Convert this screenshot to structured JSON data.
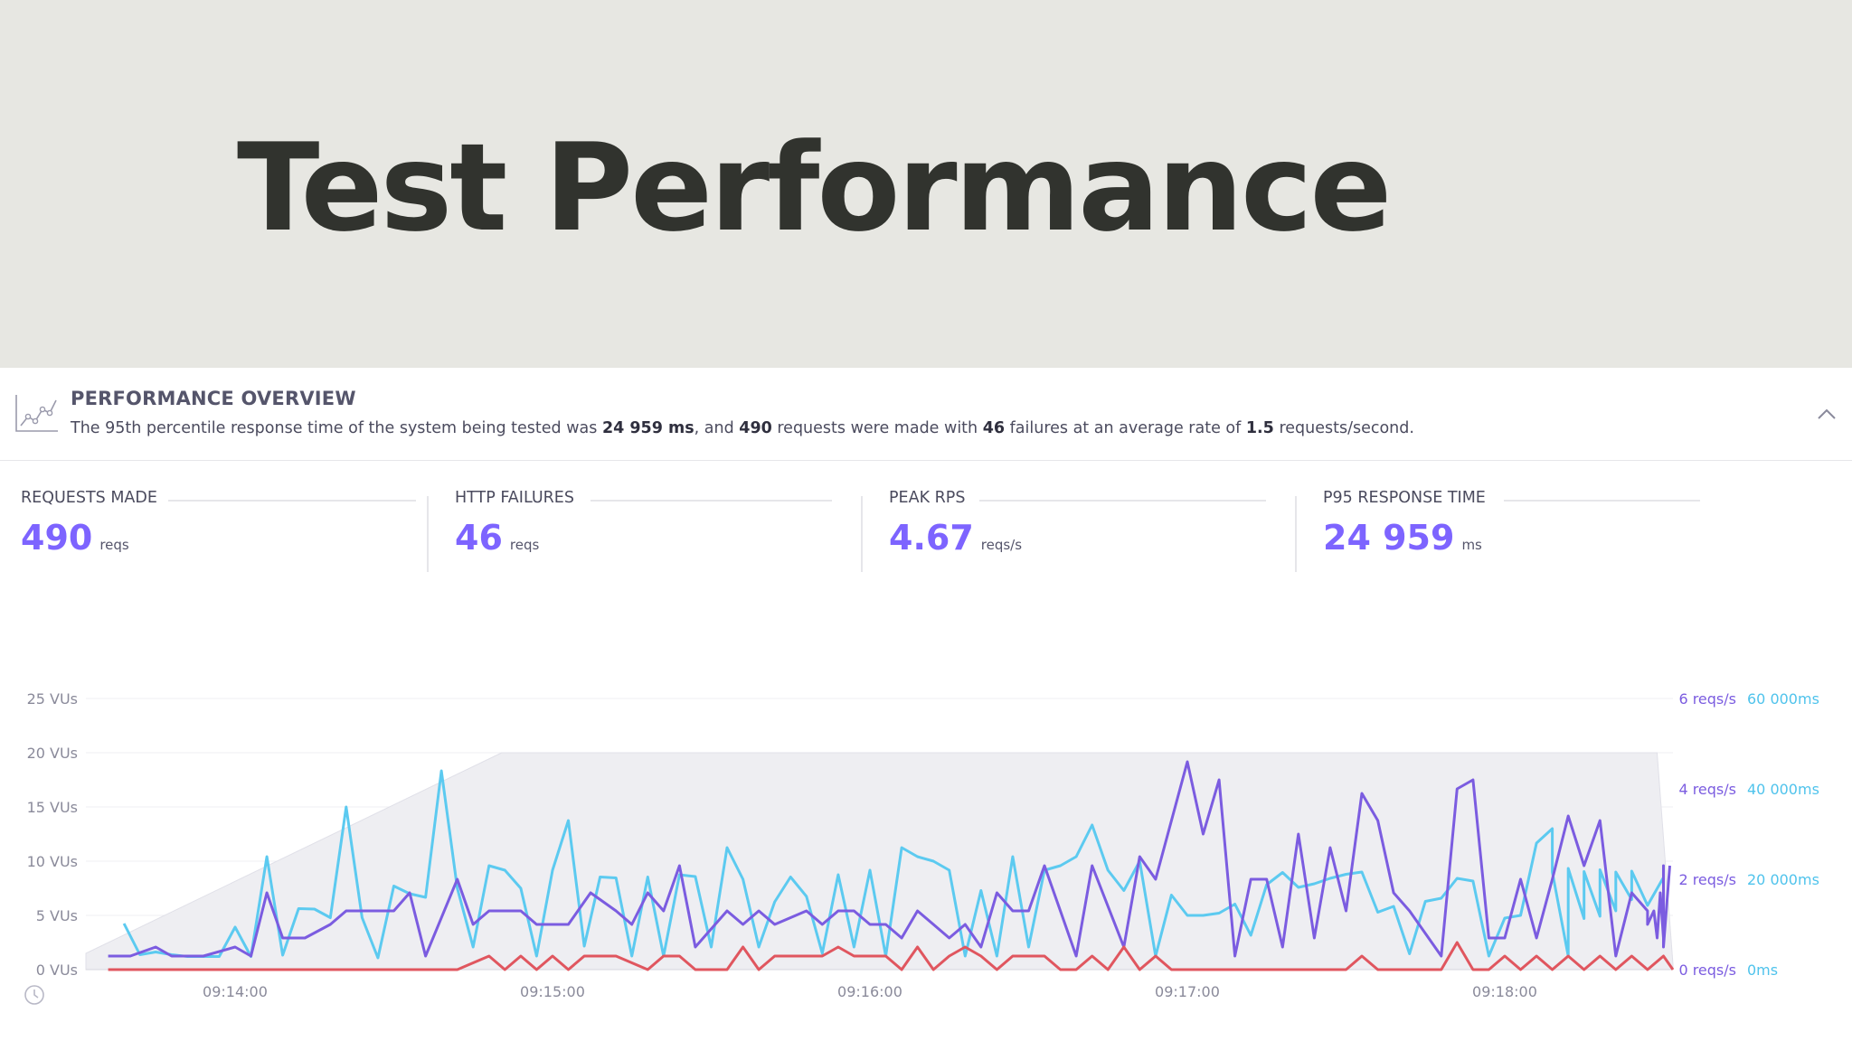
{
  "header": {
    "title": "Test Performance"
  },
  "overview": {
    "title": "PERFORMANCE OVERVIEW",
    "sentence": {
      "t1": "The 95th percentile response time of the system being tested was ",
      "p95": "24 959 ms",
      "t2": ", and ",
      "requests": "490",
      "t3": " requests were made with ",
      "failures": "46",
      "t4": " failures at an average rate of ",
      "rate": "1.5",
      "t5": " requests/second."
    }
  },
  "stats": [
    {
      "label": "REQUESTS MADE",
      "value": "490",
      "unit": "reqs"
    },
    {
      "label": "HTTP FAILURES",
      "value": "46",
      "unit": "reqs"
    },
    {
      "label": "PEAK RPS",
      "value": "4.67",
      "unit": "reqs/s"
    },
    {
      "label": "P95 RESPONSE TIME",
      "value": "24 959",
      "unit": "ms"
    }
  ],
  "icons": {
    "overview": "performance-chart-icon",
    "collapse": "chevron-up-icon",
    "clock": "clock-icon"
  },
  "colors": {
    "accent": "#7d64ff",
    "reqs": "#7b5ce0",
    "response": "#5ccaf0",
    "failures": "#e0565f",
    "vus": "#eeeef2"
  },
  "chart_data": {
    "type": "line",
    "x_ticks": [
      "09:14:00",
      "09:15:00",
      "09:16:00",
      "09:17:00",
      "09:18:00"
    ],
    "x_ticks_pos_min": [
      1,
      2,
      3,
      4,
      5
    ],
    "x_range_min": [
      0.53,
      5.53
    ],
    "y_left": {
      "ticks": [
        "0 VUs",
        "5 VUs",
        "10 VUs",
        "15 VUs",
        "20 VUs",
        "25 VUs"
      ],
      "values": [
        0,
        5,
        10,
        15,
        20,
        25
      ],
      "range": [
        0,
        25
      ]
    },
    "y_right_reqs": {
      "ticks": [
        "0 reqs/s",
        "2 reqs/s",
        "4 reqs/s",
        "6 reqs/s"
      ],
      "values": [
        0,
        2,
        4,
        6
      ],
      "range": [
        0,
        6
      ]
    },
    "y_right_ms": {
      "ticks": [
        "0ms",
        "20 000ms",
        "40 000ms",
        "60 000ms"
      ],
      "values": [
        0,
        20000,
        40000,
        60000
      ],
      "range": [
        0,
        60000
      ]
    },
    "series": [
      {
        "id": "vus",
        "axis": "vus",
        "x_min": [
          0.53,
          1.84,
          5.48,
          5.53
        ],
        "values": [
          1.5,
          20,
          20,
          0.5
        ]
      },
      {
        "id": "response",
        "axis": "ms",
        "values": [
          10200,
          3300,
          3900,
          3300,
          2900,
          2900,
          2900,
          9400,
          2900,
          25000,
          3200,
          13500,
          13400,
          11500,
          36000,
          11500,
          2600,
          18500,
          16800,
          16000,
          44000,
          18000,
          5000,
          23000,
          22000,
          18000,
          3000,
          22000,
          33000,
          5200,
          20500,
          20300,
          3000,
          20500,
          3000,
          21000,
          20600,
          5000,
          27000,
          20000,
          5000,
          15000,
          20500,
          16200,
          3600,
          21000,
          5000,
          22000,
          3000,
          27000,
          25000,
          24000,
          22000,
          3000,
          17500,
          3000,
          25000,
          5000,
          22000,
          23000,
          25000,
          32000,
          22000,
          17500,
          24000,
          3000,
          16500,
          12000,
          12000,
          12500,
          14500,
          7600,
          18800,
          21500,
          18200,
          19000,
          20200,
          21100,
          21600,
          12700,
          14000,
          3500,
          15100,
          15800,
          20200,
          19600,
          3000,
          11400,
          12000,
          28000,
          31200,
          3000,
          11300,
          11800,
          13000,
          15500,
          14200,
          21600,
          22400,
          21700,
          22100,
          21600,
          21800,
          20400
        ],
        "x_min": [
          0.65,
          0.7,
          0.75,
          0.8,
          0.85,
          0.9,
          0.95,
          1.0,
          1.05,
          1.1,
          1.15,
          1.2,
          1.25,
          1.3,
          1.35,
          1.4,
          1.45,
          1.5,
          1.55,
          1.6,
          1.65,
          1.7,
          1.75,
          1.8,
          1.85,
          1.9,
          1.95,
          2.0,
          2.05,
          2.1,
          2.15,
          2.2,
          2.25,
          2.3,
          2.35,
          2.4,
          2.45,
          2.5,
          2.55,
          2.6,
          2.65,
          2.7,
          2.75,
          2.8,
          2.85,
          2.9,
          2.95,
          3.0,
          3.05,
          3.1,
          3.15,
          3.2,
          3.25,
          3.3,
          3.35,
          3.4,
          3.45,
          3.5,
          3.55,
          3.6,
          3.65,
          3.7,
          3.75,
          3.8,
          3.85,
          3.9,
          3.95,
          4.0,
          4.05,
          4.1,
          4.15,
          4.2,
          4.25,
          4.3,
          4.35,
          4.4,
          4.45,
          4.5,
          4.55,
          4.6,
          4.65,
          4.7,
          4.75,
          4.8,
          4.85,
          4.9,
          4.95,
          5.0,
          5.05,
          5.1,
          5.15,
          5.2,
          5.25,
          5.3,
          5.35,
          5.4,
          5.45,
          5.15,
          5.2,
          5.25,
          5.3,
          5.35,
          5.4,
          5.5
        ]
      },
      {
        "id": "reqs",
        "axis": "reqs",
        "values": [
          0.3,
          0.3,
          0.5,
          0.3,
          0.3,
          0.3,
          0.5,
          0.3,
          1.7,
          0.7,
          0.7,
          1.0,
          1.3,
          1.3,
          1.3,
          1.7,
          0.3,
          2.0,
          1.0,
          1.3,
          1.3,
          1.0,
          1.0,
          1.0,
          1.7,
          1.3,
          1.0,
          1.7,
          1.3,
          2.3,
          0.5,
          1.3,
          1.0,
          1.3,
          1.0,
          1.3,
          1.0,
          1.3,
          1.3,
          1.0,
          1.0,
          0.7,
          1.3,
          1.0,
          0.7,
          1.0,
          0.5,
          1.7,
          1.3,
          1.3,
          2.3,
          1.3,
          0.3,
          2.3,
          0.5,
          2.5,
          2.0,
          4.6,
          3.0,
          4.2,
          0.3,
          2.0,
          2.0,
          0.5,
          3.0,
          0.7,
          2.7,
          1.3,
          3.9,
          3.3,
          1.7,
          1.3,
          0.3,
          4.0,
          4.2,
          0.7,
          0.7,
          2.0,
          0.7,
          2.0,
          3.4,
          2.3,
          3.3,
          0.3,
          1.7,
          1.3,
          1.0,
          1.3,
          0.7,
          1.7,
          0.7,
          1.5,
          1.5,
          1.0,
          1.7,
          2.3,
          0.5,
          2.3
        ],
        "x_min": [
          0.6,
          0.67,
          0.75,
          0.8,
          0.85,
          0.9,
          1.0,
          1.05,
          1.1,
          1.15,
          1.22,
          1.3,
          1.35,
          1.42,
          1.5,
          1.55,
          1.6,
          1.7,
          1.75,
          1.8,
          1.9,
          1.95,
          2.0,
          2.05,
          2.12,
          2.2,
          2.25,
          2.3,
          2.35,
          2.4,
          2.45,
          2.55,
          2.6,
          2.65,
          2.7,
          2.8,
          2.85,
          2.9,
          2.95,
          3.0,
          3.05,
          3.1,
          3.15,
          3.2,
          3.25,
          3.3,
          3.35,
          3.4,
          3.45,
          3.5,
          3.55,
          3.6,
          3.65,
          3.7,
          3.8,
          3.85,
          3.9,
          4.0,
          4.05,
          4.1,
          4.15,
          4.2,
          4.25,
          4.3,
          4.35,
          4.4,
          4.45,
          4.5,
          4.55,
          4.6,
          4.65,
          4.7,
          4.8,
          4.85,
          4.9,
          4.95,
          5.0,
          5.05,
          5.1,
          5.15,
          5.2,
          5.25,
          5.3,
          5.35,
          5.4,
          5.45,
          5.45,
          5.47,
          5.48,
          5.49,
          5.5,
          5.5,
          5.5,
          5.5,
          5.5,
          5.5,
          5.5,
          5.52
        ]
      },
      {
        "id": "failures",
        "axis": "reqs",
        "values": [
          0,
          0,
          0,
          0,
          0,
          0.3,
          0,
          0.3,
          0,
          0.3,
          0,
          0.3,
          0.3,
          0.3,
          0,
          0.3,
          0.3,
          0,
          0,
          0.5,
          0,
          0.3,
          0.3,
          0.3,
          0.3,
          0.5,
          0.3,
          0.3,
          0.3,
          0,
          0.5,
          0,
          0.3,
          0.5,
          0.3,
          0,
          0.3,
          0.3,
          0.3,
          0,
          0,
          0.3,
          0,
          0.5,
          0,
          0.3,
          0,
          0,
          0,
          0,
          0,
          0,
          0,
          0,
          0.3,
          0,
          0,
          0,
          0.6,
          0,
          0,
          0.3,
          0,
          0.3,
          0,
          0.3,
          0,
          0.3,
          0,
          0.3,
          0,
          0.3,
          0
        ],
        "x_min": [
          0.6,
          1.0,
          1.5,
          1.6,
          1.7,
          1.8,
          1.85,
          1.9,
          1.95,
          2.0,
          2.05,
          2.1,
          2.15,
          2.2,
          2.3,
          2.35,
          2.4,
          2.45,
          2.55,
          2.6,
          2.65,
          2.7,
          2.75,
          2.8,
          2.85,
          2.9,
          2.95,
          3.0,
          3.05,
          3.1,
          3.15,
          3.2,
          3.25,
          3.3,
          3.35,
          3.4,
          3.45,
          3.5,
          3.55,
          3.6,
          3.65,
          3.7,
          3.75,
          3.8,
          3.85,
          3.9,
          3.95,
          4.0,
          4.05,
          4.1,
          4.2,
          4.3,
          4.4,
          4.5,
          4.55,
          4.6,
          4.7,
          4.8,
          4.85,
          4.9,
          4.95,
          5.0,
          5.05,
          5.1,
          5.15,
          5.2,
          5.25,
          5.3,
          5.35,
          5.4,
          5.45,
          5.5,
          5.53
        ]
      }
    ],
    "grid": true
  }
}
